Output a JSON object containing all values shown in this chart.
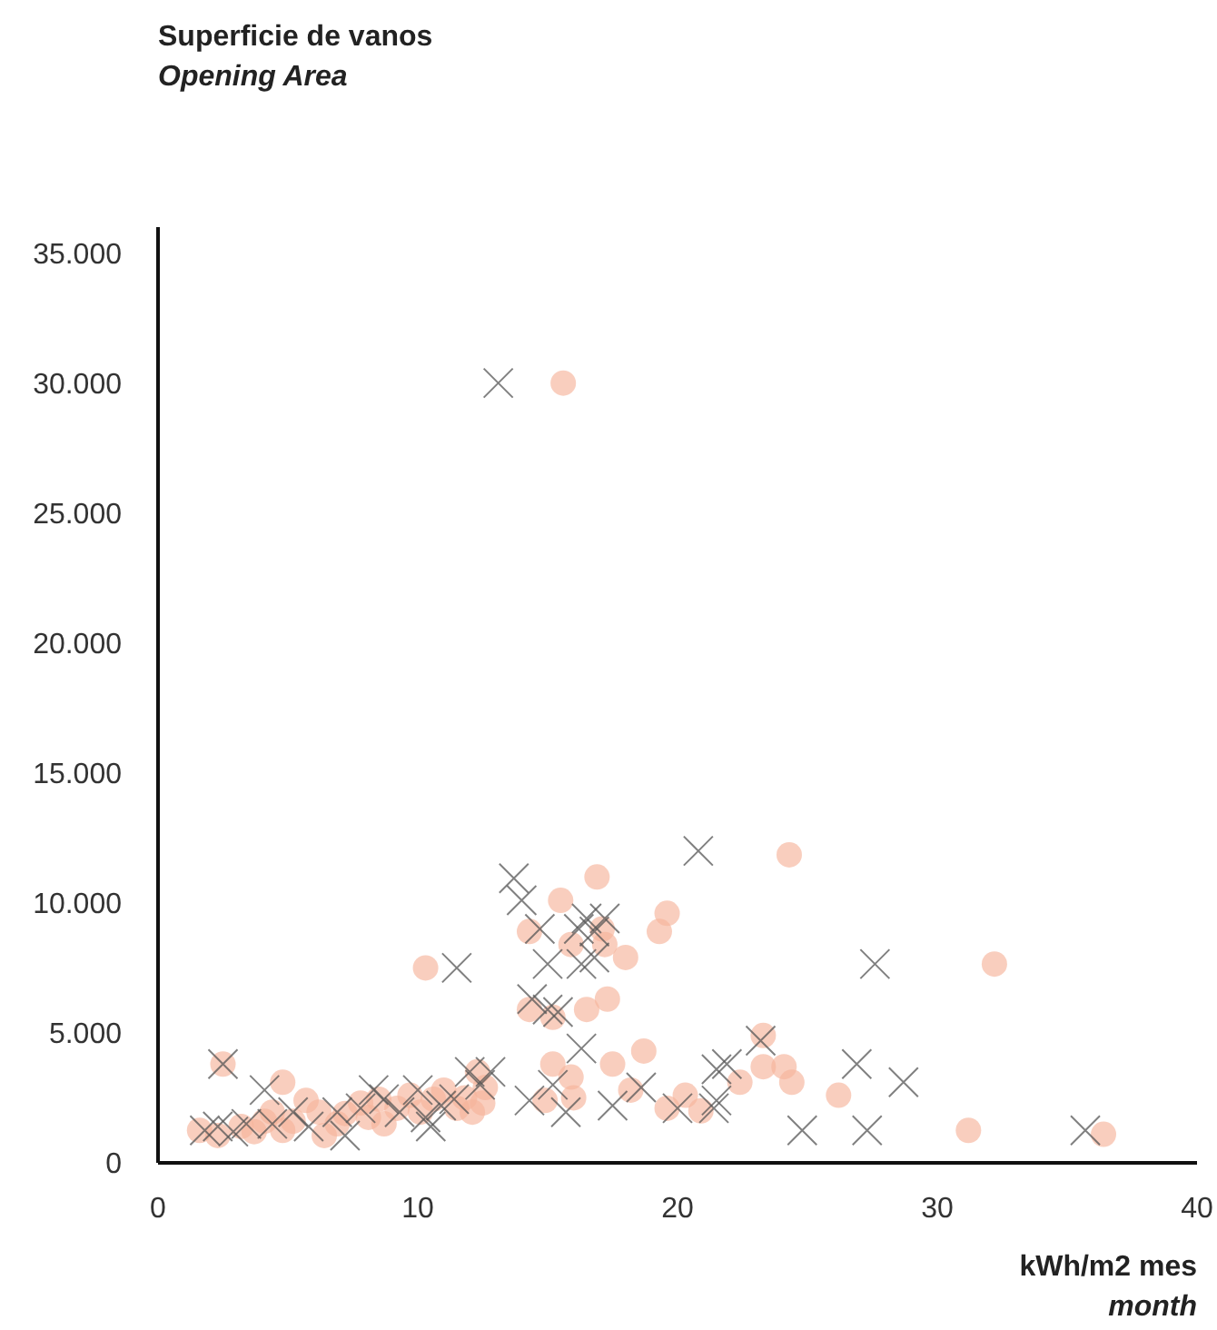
{
  "chart_data": {
    "type": "scatter",
    "ylabel": "Superficie de vanos\nOpening Area",
    "xlabel": "kWh/m2 mes\nmonth",
    "xlim": [
      0,
      40
    ],
    "xticks": [
      0,
      10,
      20,
      30,
      40
    ],
    "ylim": [
      0,
      36000
    ],
    "yticks": [
      0,
      {
        "value": 5000,
        "label": "5.000"
      },
      {
        "value": 10000,
        "label": "10.000"
      },
      {
        "value": 15000,
        "label": "15.000"
      },
      {
        "value": 20000,
        "label": "20.000"
      },
      {
        "value": 25000,
        "label": "25.000"
      },
      {
        "value": 30000,
        "label": "30.000"
      },
      {
        "value": 35000,
        "label": "35.000"
      }
    ],
    "grid": false,
    "series": [
      {
        "color": "#f6b39b",
        "marker": "circle",
        "x": [
          15.6,
          24.3,
          16.9,
          32.2,
          10.3,
          15.5,
          19.6,
          19.3,
          14.3,
          17.1,
          15.9,
          18.0,
          17.2,
          17.3,
          16.5,
          14.3,
          15.2,
          18.7,
          23.3,
          15.2,
          15.9,
          14.9,
          16.0,
          17.5,
          18.2,
          19.6,
          20.3,
          20.9,
          22.4,
          23.3,
          24.1,
          24.4,
          26.2,
          31.2,
          36.4,
          12.3,
          12.6,
          12.5,
          2.5,
          4.8,
          5.7,
          1.6,
          2.3,
          3.2,
          3.7,
          4.1,
          4.4,
          4.8,
          5.2,
          6.2,
          6.4,
          6.9,
          7.2,
          7.8,
          8.1,
          8.5,
          8.7,
          9.2,
          9.7,
          10.1,
          10.6,
          11.0,
          11.5,
          11.8,
          12.1
        ],
        "values": [
          30000,
          11850,
          11000,
          7650,
          7500,
          10100,
          9600,
          8900,
          8900,
          9000,
          8400,
          7900,
          8400,
          6300,
          5900,
          5900,
          5600,
          4300,
          4900,
          3800,
          3300,
          2400,
          2500,
          3800,
          2800,
          2100,
          2600,
          2000,
          3100,
          3700,
          3700,
          3100,
          2600,
          1250,
          1100,
          3500,
          2900,
          2300,
          3800,
          3100,
          2400,
          1250,
          1050,
          1400,
          1200,
          1600,
          1950,
          1250,
          1600,
          1950,
          1050,
          1500,
          1900,
          2300,
          1750,
          2450,
          1500,
          2100,
          2600,
          1950,
          2450,
          2800,
          2100,
          2500,
          1950
        ]
      },
      {
        "color": "#555555",
        "marker": "cross",
        "x": [
          13.1,
          20.8,
          13.7,
          14.0,
          11.5,
          27.6,
          14.7,
          16.2,
          16.5,
          16.8,
          17.2,
          15.0,
          16.3,
          16.8,
          14.4,
          15.0,
          15.4,
          16.3,
          14.3,
          15.2,
          15.7,
          18.6,
          17.5,
          20.0,
          21.4,
          21.5,
          21.9,
          23.2,
          21.5,
          24.8,
          26.9,
          27.3,
          28.7,
          35.7,
          2.5,
          1.8,
          2.3,
          2.9,
          3.4,
          4.1,
          4.4,
          5.2,
          5.8,
          6.9,
          7.2,
          7.8,
          8.3,
          8.7,
          9.3,
          10.0,
          10.5,
          10.9,
          11.4,
          12.0,
          12.4,
          12.8,
          10.3
        ],
        "values": [
          30000,
          12000,
          10950,
          10100,
          7500,
          7650,
          9000,
          9000,
          9400,
          8900,
          9400,
          7650,
          7650,
          7900,
          6300,
          5900,
          5800,
          4400,
          2400,
          3000,
          1950,
          2900,
          2200,
          2100,
          2100,
          3600,
          3800,
          4700,
          2400,
          1250,
          3800,
          1250,
          3100,
          1250,
          3800,
          1250,
          1400,
          1200,
          1500,
          2800,
          1500,
          1950,
          1400,
          1950,
          1050,
          2100,
          2800,
          2450,
          1950,
          2800,
          1400,
          2200,
          2450,
          3500,
          3000,
          3500,
          1750
        ]
      }
    ]
  }
}
